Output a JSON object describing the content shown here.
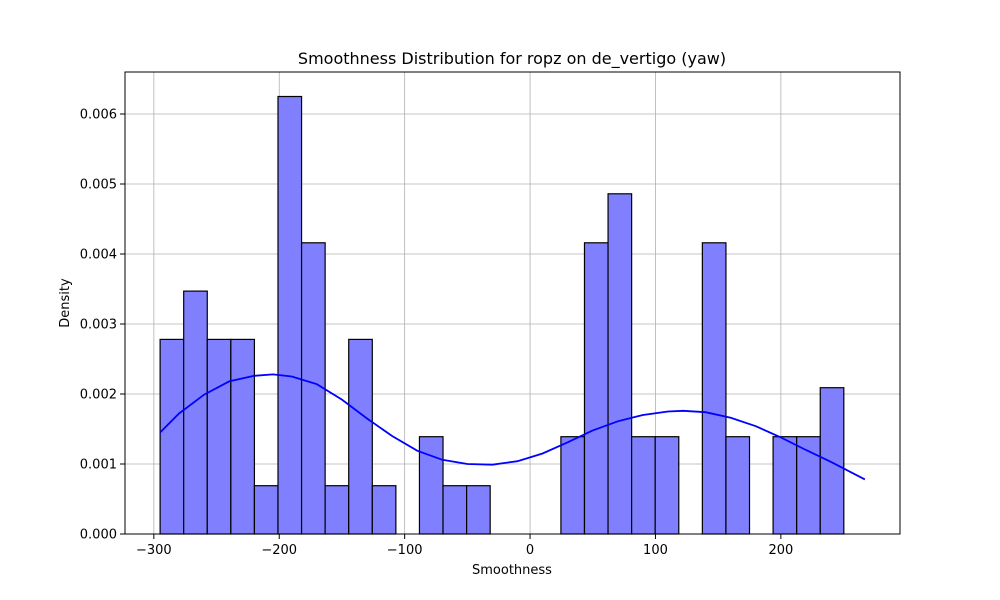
{
  "chart_data": {
    "type": "bar",
    "title": "Smoothness Distribution for ropz on de_vertigo (yaw)",
    "xlabel": "Smoothness",
    "ylabel": "Density",
    "xlim": [
      -323,
      295
    ],
    "ylim": [
      0,
      0.0066
    ],
    "xticks": [
      -300,
      -200,
      -100,
      0,
      100,
      200
    ],
    "xtick_labels": [
      "−300",
      "−200",
      "−100",
      "0",
      "100",
      "200"
    ],
    "yticks": [
      0,
      0.001,
      0.002,
      0.003,
      0.004,
      0.005,
      0.006
    ],
    "ytick_labels": [
      "0.000",
      "0.001",
      "0.002",
      "0.003",
      "0.004",
      "0.005",
      "0.006"
    ],
    "grid": true,
    "bar_color": "#8080ff",
    "bar_edge_color": "#000000",
    "kde_color": "#0000ff",
    "bins": {
      "start": -295,
      "width": 18.8,
      "values": [
        0.00278,
        0.00347,
        0.00278,
        0.00278,
        0.00069,
        0.00625,
        0.00416,
        0.00069,
        0.00278,
        0.00069,
        0,
        0.00139,
        0.00069,
        0.00069,
        0,
        0,
        0,
        0.00139,
        0.00416,
        0.00486,
        0.00139,
        0.00139,
        0,
        0.00416,
        0.00139,
        0,
        0.00139,
        0.00139,
        0.00209
      ]
    },
    "kde": {
      "x": [
        -295,
        -280,
        -260,
        -240,
        -220,
        -205,
        -190,
        -170,
        -150,
        -130,
        -110,
        -90,
        -70,
        -50,
        -30,
        -10,
        10,
        30,
        50,
        70,
        90,
        110,
        122,
        140,
        160,
        180,
        200,
        220,
        240,
        267
      ],
      "y": [
        0.00145,
        0.00172,
        0.00199,
        0.00218,
        0.00226,
        0.00228,
        0.00225,
        0.00214,
        0.00192,
        0.00165,
        0.0014,
        0.00119,
        0.00106,
        0.001,
        0.00099,
        0.00104,
        0.00115,
        0.00131,
        0.00148,
        0.00161,
        0.0017,
        0.00175,
        0.00176,
        0.00174,
        0.00166,
        0.00154,
        0.00138,
        0.0012,
        0.00103,
        0.00078
      ]
    }
  }
}
